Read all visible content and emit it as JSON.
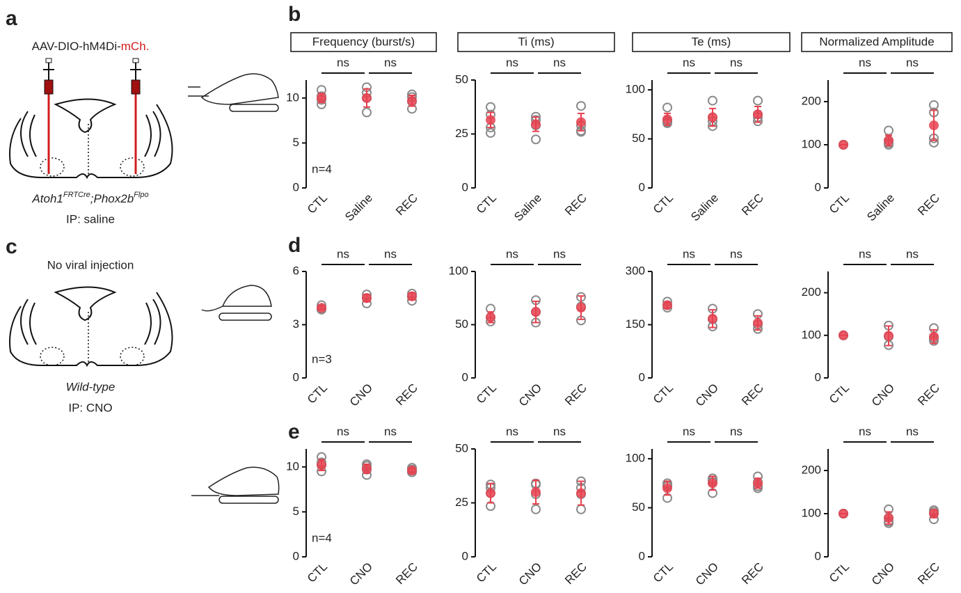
{
  "figure": {
    "panel_a": "a",
    "virus_prefix": "AAV-DIO-hM4Di-",
    "virus_suffix": "mCh.",
    "genotype_1": "Atoh1",
    "genotype_1_sup": "FRTCre",
    "genotype_2": ";Phox2b",
    "genotype_2_sup": "Flpo",
    "ip_a": "IP: saline",
    "panel_c": "c",
    "no_injection": "No viral injection",
    "wild_type": "Wild-type",
    "ip_c": "IP: CNO",
    "panel_b": "b",
    "panel_d": "d",
    "panel_e": "e"
  },
  "chart_data": [
    {
      "type": "dot",
      "title": "Frequency (burst/s)",
      "categories": [
        "CTL",
        "Saline",
        "REC"
      ],
      "points": [
        [
          10.9,
          10.2,
          9.8,
          9.3
        ],
        [
          11.2,
          10.6,
          10,
          8.4
        ],
        [
          10.4,
          10.1,
          9.6,
          8.8
        ]
      ],
      "means": [
        10,
        10,
        9.7
      ],
      "errors": [
        0.5,
        1.0,
        0.6
      ],
      "ylim": [
        0,
        12
      ],
      "yticks": [
        0,
        5,
        10
      ],
      "annotations": [
        "ns",
        "ns"
      ],
      "n_label": "n=4",
      "point_color": "#8a8a8a",
      "mean_color": "#e8414f"
    },
    {
      "type": "dot",
      "title": "Ti (ms)",
      "categories": [
        "CTL",
        "Saline",
        "REC"
      ],
      "points": [
        [
          37.5,
          34,
          28,
          25.5
        ],
        [
          33,
          31.5,
          29,
          22.5
        ],
        [
          38,
          29,
          26.5,
          26
        ]
      ],
      "means": [
        31.5,
        29.5,
        30.5
      ],
      "errors": [
        3.5,
        3.3,
        4
      ],
      "ylim": [
        0,
        50
      ],
      "yticks": [
        0,
        25,
        50
      ],
      "annotations": [
        "ns",
        "ns"
      ],
      "point_color": "#8a8a8a",
      "mean_color": "#e8414f"
    },
    {
      "type": "dot",
      "title": "Te (ms)",
      "categories": [
        "CTL",
        "Saline",
        "REC"
      ],
      "points": [
        [
          82,
          69,
          67,
          66
        ],
        [
          89,
          72,
          68,
          63
        ],
        [
          89,
          75,
          72,
          68
        ]
      ],
      "means": [
        70,
        72,
        75
      ],
      "errors": [
        6,
        9,
        8
      ],
      "ylim": [
        0,
        110
      ],
      "yticks": [
        0,
        50,
        100
      ],
      "annotations": [
        "ns",
        "ns"
      ],
      "point_color": "#8a8a8a",
      "mean_color": "#e8414f"
    },
    {
      "type": "dot",
      "title": "Normalized Amplitude",
      "categories": [
        "CTL",
        "Saline",
        "REC"
      ],
      "points": [
        [
          100,
          100,
          100,
          100
        ],
        [
          133,
          110,
          104,
          100
        ],
        [
          192,
          175,
          115,
          105
        ]
      ],
      "means": [
        100,
        110,
        145
      ],
      "errors": [
        0,
        12,
        35
      ],
      "ylim": [
        0,
        250
      ],
      "yticks": [
        0,
        100,
        200
      ],
      "annotations": [
        "ns",
        "ns"
      ],
      "point_color": "#8a8a8a",
      "mean_color": "#e8414f"
    },
    {
      "type": "dot",
      "categories": [
        "CTL",
        "CNO",
        "REC"
      ],
      "points": [
        [
          4.1,
          3.9,
          3.85
        ],
        [
          4.7,
          4.5,
          4.2
        ],
        [
          4.75,
          4.6,
          4.35
        ]
      ],
      "means": [
        3.95,
        4.5,
        4.6
      ],
      "errors": [
        0.1,
        0.2,
        0.2
      ],
      "ylim": [
        0,
        6
      ],
      "yticks": [
        0,
        3,
        6
      ],
      "annotations": [
        "ns",
        "ns"
      ],
      "n_label": "n=3",
      "point_color": "#8a8a8a",
      "mean_color": "#e8414f"
    },
    {
      "type": "dot",
      "categories": [
        "CTL",
        "CNO",
        "REC"
      ],
      "points": [
        [
          65,
          57,
          53
        ],
        [
          73,
          62,
          52
        ],
        [
          76,
          67,
          54
        ]
      ],
      "means": [
        57,
        62,
        66
      ],
      "errors": [
        5,
        10,
        11
      ],
      "ylim": [
        0,
        100
      ],
      "yticks": [
        0,
        50,
        100
      ],
      "annotations": [
        "ns",
        "ns"
      ],
      "point_color": "#8a8a8a",
      "mean_color": "#e8414f"
    },
    {
      "type": "dot",
      "categories": [
        "CTL",
        "CNO",
        "REC"
      ],
      "points": [
        [
          215,
          205,
          198
        ],
        [
          195,
          165,
          145
        ],
        [
          180,
          150,
          138
        ]
      ],
      "means": [
        205,
        167,
        155
      ],
      "errors": [
        8,
        25,
        20
      ],
      "ylim": [
        0,
        300
      ],
      "yticks": [
        0,
        150,
        300
      ],
      "annotations": [
        "ns",
        "ns"
      ],
      "point_color": "#8a8a8a",
      "mean_color": "#e8414f"
    },
    {
      "type": "dot",
      "categories": [
        "CTL",
        "CNO",
        "REC"
      ],
      "points": [
        [
          100,
          100,
          100
        ],
        [
          123,
          97,
          77
        ],
        [
          117,
          93,
          87
        ]
      ],
      "means": [
        100,
        99,
        97
      ],
      "errors": [
        0,
        23,
        16
      ],
      "ylim": [
        0,
        250
      ],
      "yticks": [
        0,
        100,
        200
      ],
      "annotations": [
        "ns",
        "ns"
      ],
      "point_color": "#8a8a8a",
      "mean_color": "#e8414f"
    },
    {
      "type": "dot",
      "categories": [
        "CTL",
        "CNO",
        "REC"
      ],
      "points": [
        [
          11.1,
          10.5,
          10.2,
          9.5
        ],
        [
          10.3,
          10.1,
          9.7,
          9.1
        ],
        [
          9.9,
          9.7,
          9.6,
          9.4
        ]
      ],
      "means": [
        10.2,
        9.8,
        9.6
      ],
      "errors": [
        0.6,
        0.5,
        0.2
      ],
      "ylim": [
        0,
        12
      ],
      "yticks": [
        0,
        5,
        10
      ],
      "annotations": [
        "ns",
        "ns"
      ],
      "n_label": "n=4",
      "point_color": "#8a8a8a",
      "mean_color": "#e8414f"
    },
    {
      "type": "dot",
      "categories": [
        "CTL",
        "CNO",
        "REC"
      ],
      "points": [
        [
          33.5,
          32,
          29.5,
          23.5
        ],
        [
          34,
          33.5,
          29,
          22
        ],
        [
          35,
          32,
          29,
          22
        ]
      ],
      "means": [
        29.5,
        30,
        29.5
      ],
      "errors": [
        4.5,
        5.5,
        5.5
      ],
      "ylim": [
        0,
        50
      ],
      "yticks": [
        0,
        25,
        50
      ],
      "annotations": [
        "ns",
        "ns"
      ],
      "point_color": "#8a8a8a",
      "mean_color": "#e8414f"
    },
    {
      "type": "dot",
      "categories": [
        "CTL",
        "CNO",
        "REC"
      ],
      "points": [
        [
          75,
          73,
          72,
          60
        ],
        [
          80,
          78,
          76,
          65
        ],
        [
          82,
          76,
          72,
          70
        ]
      ],
      "means": [
        70,
        75,
        75
      ],
      "errors": [
        7,
        7,
        5
      ],
      "ylim": [
        0,
        110
      ],
      "yticks": [
        0,
        50,
        100
      ],
      "annotations": [
        "ns",
        "ns"
      ],
      "point_color": "#8a8a8a",
      "mean_color": "#e8414f"
    },
    {
      "type": "dot",
      "categories": [
        "CTL",
        "CNO",
        "REC"
      ],
      "points": [
        [
          100,
          100,
          100,
          100
        ],
        [
          110,
          90,
          82,
          78
        ],
        [
          108,
          104,
          100,
          87
        ]
      ],
      "means": [
        100,
        90,
        100
      ],
      "errors": [
        0,
        14,
        9
      ],
      "ylim": [
        0,
        250
      ],
      "yticks": [
        0,
        100,
        200
      ],
      "annotations": [
        "ns",
        "ns"
      ],
      "point_color": "#8a8a8a",
      "mean_color": "#e8414f"
    }
  ]
}
